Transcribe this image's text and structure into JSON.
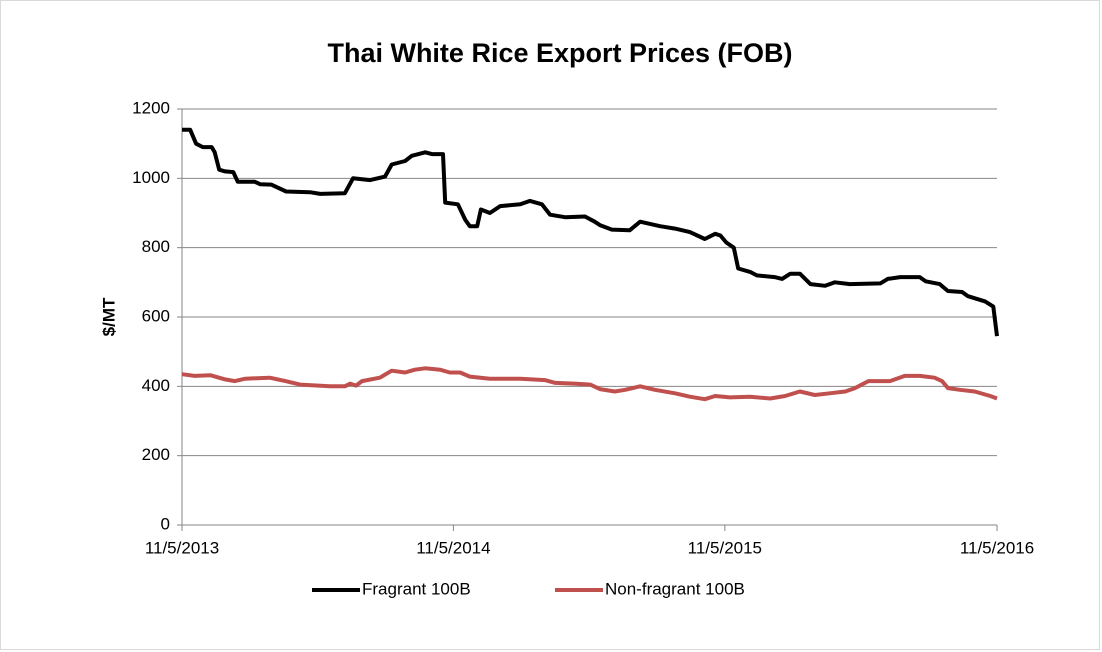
{
  "chart_data": {
    "type": "line",
    "title": "Thai White Rice Export Prices (FOB)",
    "y_label": "$/MT",
    "xlim": [
      "2013-11-05",
      "2016-11-05"
    ],
    "xticks": [
      {
        "value": "2013-11-05",
        "label": "11/5/2013"
      },
      {
        "value": "2014-11-05",
        "label": "11/5/2014"
      },
      {
        "value": "2015-11-05",
        "label": "11/5/2015"
      },
      {
        "value": "2016-11-05",
        "label": "11/5/2016"
      }
    ],
    "ylim": [
      0,
      1200
    ],
    "yticks": [
      0,
      200,
      400,
      600,
      800,
      1000,
      1200
    ],
    "grid": true,
    "legend": "bottom",
    "series": [
      {
        "name": "Fragrant 100B",
        "color": "#000000",
        "x": [
          "2013-11-05",
          "2013-11-16",
          "2013-11-24",
          "2013-12-03",
          "2013-12-15",
          "2013-12-19",
          "2013-12-25",
          "2014-01-02",
          "2014-01-13",
          "2014-01-19",
          "2014-02-11",
          "2014-02-18",
          "2014-03-05",
          "2014-03-25",
          "2014-04-26",
          "2014-05-10",
          "2014-06-12",
          "2014-06-23",
          "2014-07-16",
          "2014-08-05",
          "2014-08-14",
          "2014-09-01",
          "2014-09-10",
          "2014-09-28",
          "2014-10-07",
          "2014-10-22",
          "2014-10-25",
          "2014-11-11",
          "2014-11-21",
          "2014-11-27",
          "2014-12-07",
          "2014-12-12",
          "2014-12-24",
          "2015-01-07",
          "2015-02-03",
          "2015-02-16",
          "2015-03-04",
          "2015-03-15",
          "2015-04-04",
          "2015-05-01",
          "2015-05-14",
          "2015-05-21",
          "2015-06-06",
          "2015-06-30",
          "2015-07-14",
          "2015-08-10",
          "2015-08-30",
          "2015-09-19",
          "2015-10-09",
          "2015-10-23",
          "2015-10-30",
          "2015-11-07",
          "2015-11-17",
          "2015-11-23",
          "2015-12-09",
          "2015-12-18",
          "2016-01-11",
          "2016-01-21",
          "2016-02-01",
          "2016-02-14",
          "2016-02-28",
          "2016-03-19",
          "2016-04-01",
          "2016-04-21",
          "2016-06-01",
          "2016-06-11",
          "2016-06-28",
          "2016-07-24",
          "2016-08-01",
          "2016-08-20",
          "2016-08-31",
          "2016-09-19",
          "2016-09-27",
          "2016-10-20",
          "2016-10-31",
          "2016-11-05"
        ],
        "values": [
          1140,
          1140,
          1100,
          1090,
          1090,
          1075,
          1025,
          1020,
          1018,
          990,
          990,
          983,
          982,
          962,
          960,
          955,
          957,
          1000,
          995,
          1005,
          1040,
          1050,
          1065,
          1075,
          1070,
          1070,
          930,
          925,
          880,
          862,
          862,
          910,
          900,
          920,
          925,
          935,
          925,
          895,
          888,
          890,
          875,
          865,
          852,
          850,
          875,
          862,
          855,
          845,
          825,
          840,
          835,
          815,
          800,
          740,
          730,
          720,
          715,
          710,
          725,
          725,
          695,
          690,
          700,
          695,
          697,
          710,
          715,
          715,
          703,
          695,
          675,
          672,
          660,
          645,
          630,
          545
        ]
      },
      {
        "name": "Non-fragrant 100B",
        "color": "#c0504d",
        "x": [
          "2013-11-05",
          "2013-11-22",
          "2013-12-13",
          "2014-01-02",
          "2014-01-15",
          "2014-01-29",
          "2014-03-03",
          "2014-03-24",
          "2014-04-13",
          "2014-05-23",
          "2014-06-12",
          "2014-06-19",
          "2014-06-27",
          "2014-07-05",
          "2014-07-29",
          "2014-08-14",
          "2014-09-01",
          "2014-09-14",
          "2014-09-28",
          "2014-10-18",
          "2014-10-31",
          "2014-11-14",
          "2014-11-27",
          "2014-12-24",
          "2015-02-03",
          "2015-03-08",
          "2015-03-22",
          "2015-04-17",
          "2015-05-08",
          "2015-05-21",
          "2015-06-10",
          "2015-06-24",
          "2015-07-14",
          "2015-08-03",
          "2015-08-30",
          "2015-09-19",
          "2015-10-09",
          "2015-10-23",
          "2015-11-12",
          "2015-12-09",
          "2016-01-05",
          "2016-01-25",
          "2016-02-14",
          "2016-03-05",
          "2016-03-25",
          "2016-04-15",
          "2016-04-28",
          "2016-05-16",
          "2016-06-14",
          "2016-07-04",
          "2016-07-24",
          "2016-08-13",
          "2016-08-23",
          "2016-08-31",
          "2016-09-16",
          "2016-10-06",
          "2016-10-27",
          "2016-11-05"
        ],
        "values": [
          435,
          430,
          432,
          420,
          415,
          422,
          425,
          415,
          405,
          400,
          400,
          408,
          402,
          415,
          425,
          445,
          440,
          448,
          452,
          448,
          440,
          440,
          428,
          422,
          422,
          418,
          410,
          408,
          405,
          392,
          385,
          390,
          400,
          390,
          380,
          370,
          363,
          372,
          368,
          370,
          365,
          372,
          385,
          375,
          380,
          385,
          395,
          415,
          415,
          430,
          430,
          425,
          415,
          395,
          390,
          385,
          372,
          365
        ]
      }
    ]
  }
}
